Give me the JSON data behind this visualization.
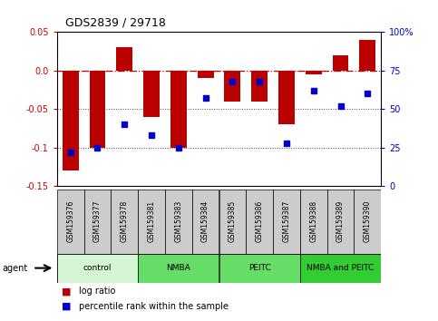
{
  "title": "GDS2839 / 29718",
  "samples": [
    "GSM159376",
    "GSM159377",
    "GSM159378",
    "GSM159381",
    "GSM159383",
    "GSM159384",
    "GSM159385",
    "GSM159386",
    "GSM159387",
    "GSM159388",
    "GSM159389",
    "GSM159390"
  ],
  "log_ratio": [
    -0.13,
    -0.1,
    0.03,
    -0.06,
    -0.1,
    -0.01,
    -0.04,
    -0.04,
    -0.07,
    -0.005,
    0.02,
    0.04
  ],
  "percentile_rank": [
    22,
    25,
    40,
    33,
    25,
    57,
    68,
    68,
    28,
    62,
    52,
    60
  ],
  "bar_color": "#bb0000",
  "dot_color": "#0000cc",
  "ylim_left": [
    -0.15,
    0.05
  ],
  "ylim_right": [
    0,
    100
  ],
  "yticks_left": [
    -0.15,
    -0.1,
    -0.05,
    0.0,
    0.05
  ],
  "yticks_right": [
    0,
    25,
    50,
    75,
    100
  ],
  "groups": [
    {
      "label": "control",
      "start": 0,
      "end": 3,
      "color": "#d5f5d5"
    },
    {
      "label": "NMBA",
      "start": 3,
      "end": 6,
      "color": "#66dd66"
    },
    {
      "label": "PEITC",
      "start": 6,
      "end": 9,
      "color": "#66dd66"
    },
    {
      "label": "NMBA and PEITC",
      "start": 9,
      "end": 12,
      "color": "#33cc33"
    }
  ],
  "agent_label": "agent",
  "legend_logratio": "log ratio",
  "legend_percentile": "percentile rank within the sample",
  "hline_zero_color": "#cc0000",
  "hline_dotted_color": "#444444",
  "sample_box_color": "#cccccc",
  "background_color": "#ffffff"
}
